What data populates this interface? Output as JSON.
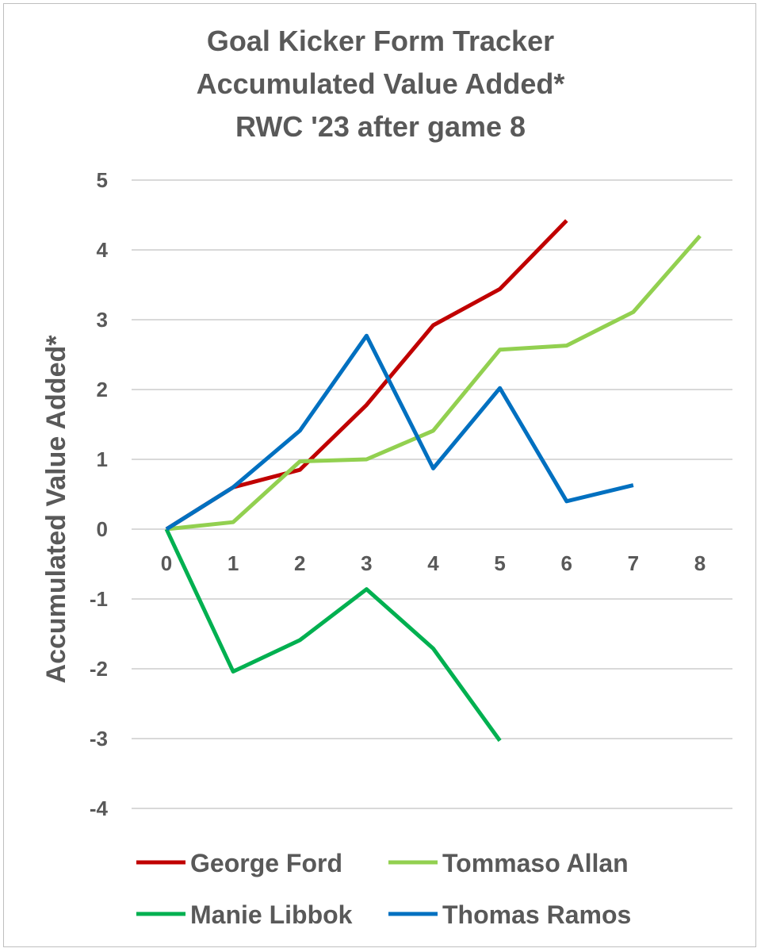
{
  "chart_data": {
    "type": "line",
    "title_lines": [
      "Goal Kicker Form Tracker",
      "Accumulated Value Added*",
      "RWC '23 after game 8"
    ],
    "xlabel": "",
    "ylabel": "Accumulated Value Added*",
    "ylim": [
      -4,
      5
    ],
    "xlim": [
      0,
      8
    ],
    "y_ticks": [
      -4,
      -3,
      -2,
      -1,
      0,
      1,
      2,
      3,
      4,
      5
    ],
    "x_ticks": [
      0,
      1,
      2,
      3,
      4,
      5,
      6,
      7,
      8
    ],
    "grid": true,
    "legend_position": "bottom",
    "series": [
      {
        "name": "George Ford",
        "color": "#c00000",
        "x": [
          0,
          1,
          2,
          3,
          4,
          5,
          6
        ],
        "y": [
          0,
          0.6,
          0.85,
          1.78,
          2.92,
          3.44,
          4.42
        ]
      },
      {
        "name": "Tommaso Allan",
        "color": "#92d050",
        "x": [
          0,
          1,
          2,
          3,
          4,
          5,
          6,
          7,
          8
        ],
        "y": [
          0,
          0.1,
          0.97,
          1.0,
          1.41,
          2.57,
          2.63,
          3.11,
          4.2
        ]
      },
      {
        "name": "Manie Libbok",
        "color": "#00b050",
        "x": [
          0,
          1,
          2,
          3,
          4,
          5
        ],
        "y": [
          0,
          -2.04,
          -1.59,
          -0.86,
          -1.71,
          -3.03
        ]
      },
      {
        "name": "Thomas Ramos",
        "color": "#0070c0",
        "x": [
          0,
          1,
          2,
          3,
          4,
          5,
          6,
          7
        ],
        "y": [
          0,
          0.6,
          1.41,
          2.77,
          0.87,
          2.02,
          0.4,
          0.63
        ]
      }
    ]
  }
}
